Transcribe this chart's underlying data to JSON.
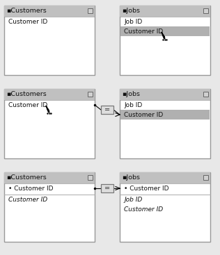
{
  "bg_color": "#e8e8e8",
  "box_bg": "#ffffff",
  "box_border": "#999999",
  "header_bg": "#c0c0c0",
  "header_sel_bg": "#b0b0b0",
  "fig_width": 3.16,
  "fig_height": 3.67,
  "rows": [
    {
      "left_title": "Customers",
      "left_fields_top": [
        "Customer ID"
      ],
      "left_fields_top_sel": [],
      "left_fields_bot": [],
      "left_cursor": false,
      "right_title": "Jobs",
      "right_fields_top": [
        "Job ID",
        "Customer ID"
      ],
      "right_fields_top_sel": [
        "Customer ID"
      ],
      "right_fields_bot": [],
      "right_cursor": true,
      "connected": false,
      "conn_left_field": null,
      "conn_right_field": null
    },
    {
      "left_title": "Customers",
      "left_fields_top": [
        "Customer ID"
      ],
      "left_fields_top_sel": [],
      "left_fields_bot": [],
      "left_cursor": true,
      "right_title": "Jobs",
      "right_fields_top": [
        "Job ID",
        "Customer ID"
      ],
      "right_fields_top_sel": [
        "Customer ID"
      ],
      "right_fields_bot": [],
      "right_cursor": false,
      "connected": true,
      "conn_left_field": "Customer ID",
      "conn_right_field": "Customer ID"
    },
    {
      "left_title": "Customers",
      "left_fields_top": [
        "Customer ID"
      ],
      "left_fields_top_sel": [],
      "left_fields_bot": [
        "Customer ID"
      ],
      "left_cursor": false,
      "right_title": "Jobs",
      "right_fields_top": [
        "Customer ID"
      ],
      "right_fields_top_sel": [],
      "right_fields_bot": [
        "Job ID",
        "Customer ID"
      ],
      "right_cursor": false,
      "connected": true,
      "conn_left_field": "Customer ID",
      "conn_right_field": "Customer ID"
    }
  ]
}
